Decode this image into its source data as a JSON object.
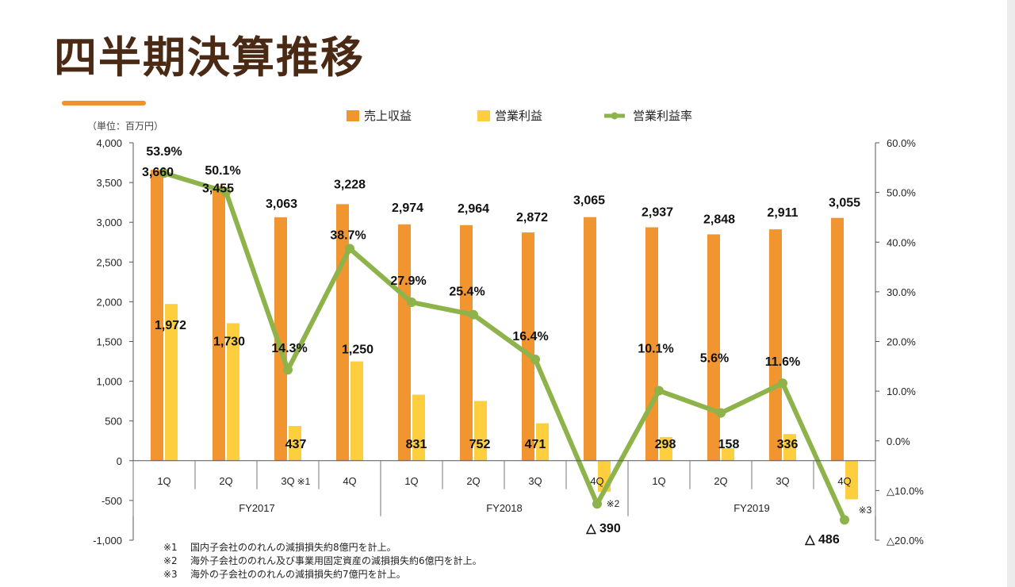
{
  "title": "四半期決算推移",
  "unit_label": "（単位：百万円）",
  "colors": {
    "revenue": "#f0952f",
    "operating_income": "#fdcf3f",
    "margin": "#8db34a",
    "title": "#4a2a14",
    "accent": "#f0922d"
  },
  "chart_data": {
    "type": "bar+line",
    "legend": [
      "売上収益",
      "営業利益",
      "営業利益率"
    ],
    "legend_position": "top",
    "quarters": [
      "1Q",
      "2Q",
      "3Q",
      "4Q",
      "1Q",
      "2Q",
      "3Q",
      "4Q",
      "1Q",
      "2Q",
      "3Q",
      "4Q"
    ],
    "years": [
      "FY2017",
      "FY2018",
      "FY2019"
    ],
    "revenue": [
      3660,
      3455,
      3063,
      3228,
      2974,
      2964,
      2872,
      3065,
      2937,
      2848,
      2911,
      3055
    ],
    "revenue_labels": [
      "3,660",
      "3,455",
      "3,063",
      "3,228",
      "2,974",
      "2,964",
      "2,872",
      "3,065",
      "2,937",
      "2,848",
      "2,911",
      "3,055"
    ],
    "operating_income": [
      1972,
      1730,
      437,
      1250,
      831,
      752,
      471,
      -390,
      298,
      158,
      336,
      -486
    ],
    "operating_income_labels": [
      "1,972",
      "1,730",
      "437",
      "1,250",
      "831",
      "752",
      "471",
      "△ 390",
      "298",
      "158",
      "336",
      "△ 486"
    ],
    "operating_margin": [
      53.9,
      50.1,
      14.3,
      38.7,
      27.9,
      25.4,
      16.4,
      -12.7,
      10.1,
      5.6,
      11.6,
      -15.9
    ],
    "operating_margin_labels": [
      "53.9%",
      "50.1%",
      "14.3%",
      "38.7%",
      "27.9%",
      "25.4%",
      "16.4%",
      "",
      "10.1%",
      "5.6%",
      "11.6%",
      ""
    ],
    "left_axis": {
      "range": [
        -1000,
        4000
      ],
      "ticks": [
        4000,
        3500,
        3000,
        2500,
        2000,
        1500,
        1000,
        500,
        0,
        -500,
        -1000
      ],
      "tick_labels": [
        "4,000",
        "3,500",
        "3,000",
        "2,500",
        "2,000",
        "1,500",
        "1,000",
        "500",
        "0",
        "-500",
        "-1,000"
      ]
    },
    "right_axis": {
      "range": [
        -20,
        60
      ],
      "ticks": [
        60,
        50,
        40,
        30,
        20,
        10,
        0,
        -10,
        -20
      ],
      "tick_labels": [
        "60.0%",
        "50.0%",
        "40.0%",
        "30.0%",
        "20.0%",
        "10.0%",
        "0.0%",
        "△10.0%",
        "△20.0%"
      ]
    },
    "footnote_marks": [
      {
        "quarter_index": 2,
        "text": "※1"
      },
      {
        "quarter_index": 7,
        "text": "※2"
      },
      {
        "quarter_index": 11,
        "text": "※3"
      }
    ]
  },
  "notes": [
    {
      "mark": "※1",
      "text": "国内子会社ののれんの減損損失約8億円を計上。"
    },
    {
      "mark": "※2",
      "text": "海外子会社ののれん及び事業用固定資産の減損損失約6億円を計上。"
    },
    {
      "mark": "※3",
      "text": "海外の子会社ののれんの減損損失約7億円を計上。"
    }
  ]
}
